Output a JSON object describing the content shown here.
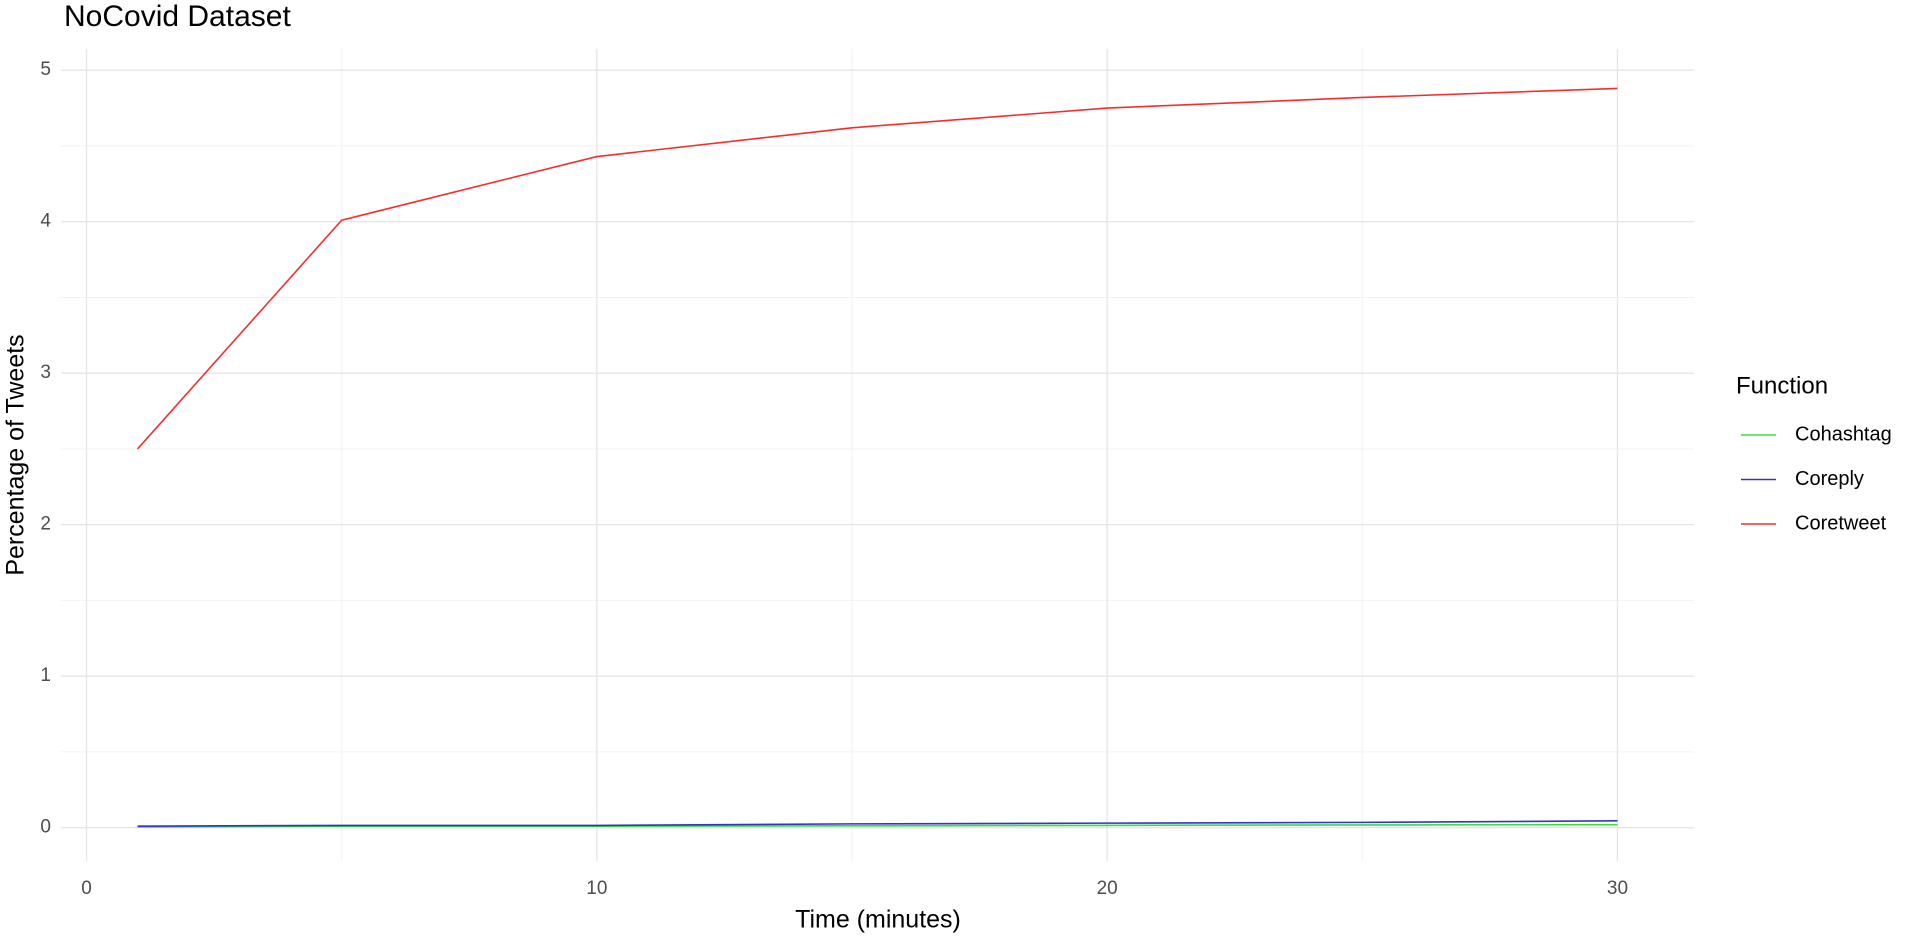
{
  "chart_data": {
    "type": "line",
    "title": "NoCovid Dataset",
    "x_label": "Time (minutes)",
    "y_label": "Percentage of Tweets",
    "legend_title": "Function",
    "x": [
      1,
      5,
      10,
      15,
      20,
      25,
      30
    ],
    "series": [
      {
        "name": "Cohashtag",
        "color": "#33e033",
        "values": [
          0.005,
          0.01,
          0.01,
          0.012,
          0.015,
          0.018,
          0.02
        ]
      },
      {
        "name": "Coreply",
        "color": "#3333cc",
        "values": [
          0.01,
          0.015,
          0.015,
          0.025,
          0.03,
          0.035,
          0.045
        ]
      },
      {
        "name": "Coretweet",
        "color": "#f03030",
        "values": [
          2.5,
          4.01,
          4.43,
          4.62,
          4.75,
          4.82,
          4.88
        ]
      }
    ],
    "xlim": [
      -0.5,
      31.5
    ],
    "ylim": [
      -0.22,
      5.14
    ],
    "xticks": [
      0,
      10,
      20,
      30
    ],
    "yticks": [
      0,
      1,
      2,
      3,
      4,
      5
    ],
    "grid": true,
    "legend": "right"
  }
}
